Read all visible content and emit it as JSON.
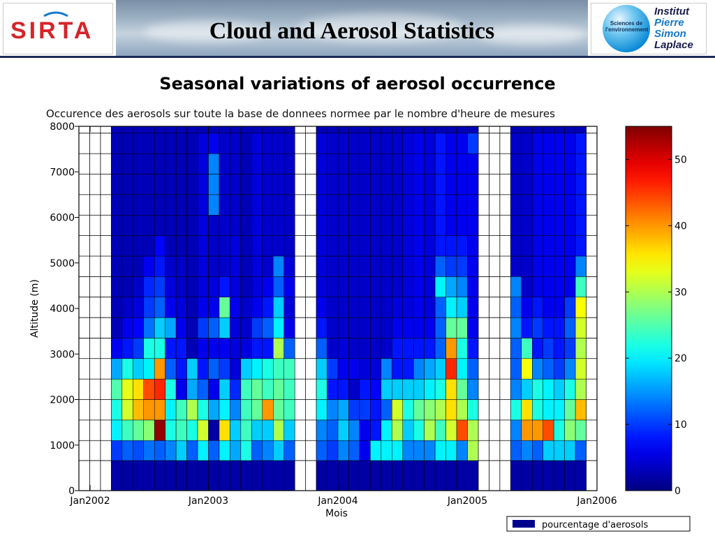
{
  "header": {
    "title": "Cloud and Aerosol Statistics",
    "logo_left_text": "SIRTA",
    "logo_right_globe_text": "Sciences de l'environnement",
    "logo_right_lines": [
      "Institut",
      "Pierre",
      "Simon",
      "Laplace"
    ]
  },
  "subtitle": "Seasonal variations of aerosol occurrence",
  "colors": {
    "header_line": "#1c2a5a",
    "logo_red": "#d6242a",
    "logo_blue": "#1578c8"
  },
  "chart_data": {
    "type": "heatmap",
    "title": "Occurence des aerosols sur toute la base de donnees normee par le nombre d'heure de mesures",
    "xlabel": "Mois",
    "ylabel": "Altitude (m)",
    "xticks": [
      "Jan2002",
      "Jan2003",
      "Jan2004",
      "Jan2005",
      "Jan2006"
    ],
    "yticks": [
      0,
      1000,
      2000,
      3000,
      4000,
      5000,
      6000,
      7000,
      8000
    ],
    "ylim": [
      0,
      8000
    ],
    "xlim_months": [
      0,
      48
    ],
    "colorbar": {
      "ticks": [
        0,
        10,
        20,
        30,
        40,
        50
      ],
      "range": [
        0,
        55
      ]
    },
    "legend": {
      "label": "pourcentage d'aerosols",
      "placement": "bottom-right"
    },
    "altitude_bins_m": [
      0,
      660,
      1100,
      1550,
      2000,
      2450,
      2900,
      3350,
      3800,
      4250,
      4700,
      5150,
      5600,
      6050,
      6500,
      6950,
      7400,
      7850,
      8000
    ],
    "columns": [
      {
        "month_index": 3,
        "values": [
          2,
          10,
          20,
          22,
          25,
          16,
          6,
          3,
          3,
          3,
          3,
          3,
          3,
          3,
          3,
          3,
          3,
          3
        ]
      },
      {
        "month_index": 4,
        "values": [
          2,
          12,
          24,
          32,
          33,
          22,
          8,
          6,
          4,
          3,
          3,
          3,
          3,
          3,
          3,
          3,
          3,
          3
        ]
      },
      {
        "month_index": 5,
        "values": [
          2,
          11,
          26,
          38,
          36,
          18,
          10,
          7,
          5,
          4,
          3,
          3,
          3,
          3,
          3,
          3,
          3,
          3
        ]
      },
      {
        "month_index": 6,
        "values": [
          2,
          13,
          28,
          40,
          44,
          20,
          22,
          13,
          10,
          9,
          6,
          3,
          3,
          3,
          3,
          3,
          3,
          3
        ]
      },
      {
        "month_index": 7,
        "values": [
          2,
          12,
          54,
          40,
          46,
          40,
          22,
          18,
          12,
          10,
          8,
          7,
          3,
          3,
          3,
          3,
          3,
          3
        ]
      },
      {
        "month_index": 8,
        "values": [
          2,
          14,
          22,
          20,
          22,
          12,
          8,
          16,
          6,
          5,
          4,
          3,
          3,
          3,
          3,
          3,
          3,
          3
        ]
      },
      {
        "month_index": 9,
        "values": [
          2,
          18,
          24,
          24,
          6,
          8,
          8,
          6,
          5,
          4,
          4,
          3,
          3,
          3,
          3,
          3,
          3,
          3
        ]
      },
      {
        "month_index": 10,
        "values": [
          2,
          12,
          22,
          30,
          16,
          18,
          3,
          3,
          3,
          3,
          3,
          3,
          3,
          3,
          3,
          3,
          3,
          3
        ]
      },
      {
        "month_index": 11,
        "values": [
          2,
          20,
          32,
          22,
          12,
          8,
          6,
          10,
          6,
          5,
          5,
          5,
          5,
          5,
          5,
          5,
          5,
          3
        ]
      },
      {
        "month_index": 12,
        "values": [
          2,
          12,
          2,
          16,
          6,
          12,
          6,
          12,
          6,
          5,
          4,
          4,
          4,
          14,
          14,
          14,
          6,
          3
        ]
      },
      {
        "month_index": 13,
        "values": [
          2,
          20,
          36,
          20,
          18,
          10,
          6,
          18,
          26,
          8,
          4,
          4,
          4,
          4,
          4,
          4,
          4,
          3
        ]
      },
      {
        "month_index": 14,
        "values": [
          2,
          16,
          18,
          14,
          9,
          5,
          5,
          5,
          6,
          5,
          5,
          5,
          4,
          4,
          4,
          4,
          4,
          3
        ]
      },
      {
        "month_index": 15,
        "values": [
          2,
          22,
          24,
          24,
          24,
          18,
          5,
          4,
          4,
          3,
          3,
          3,
          3,
          3,
          3,
          3,
          3,
          3
        ]
      },
      {
        "month_index": 16,
        "values": [
          2,
          12,
          18,
          26,
          26,
          20,
          8,
          10,
          6,
          5,
          5,
          5,
          5,
          5,
          5,
          5,
          5,
          3
        ]
      },
      {
        "month_index": 17,
        "values": [
          2,
          14,
          18,
          40,
          24,
          22,
          8,
          12,
          8,
          6,
          4,
          4,
          4,
          4,
          4,
          4,
          4,
          3
        ]
      },
      {
        "month_index": 18,
        "values": [
          2,
          18,
          30,
          26,
          26,
          24,
          30,
          20,
          18,
          12,
          14,
          4,
          4,
          4,
          4,
          4,
          4,
          3
        ]
      },
      {
        "month_index": 19,
        "values": [
          2,
          12,
          18,
          24,
          24,
          24,
          12,
          6,
          5,
          6,
          5,
          4,
          4,
          4,
          4,
          4,
          4,
          3
        ]
      },
      {
        "month_index": 22,
        "values": [
          2,
          12,
          14,
          20,
          22,
          18,
          12,
          8,
          6,
          5,
          5,
          5,
          5,
          5,
          5,
          5,
          5,
          3
        ]
      },
      {
        "month_index": 23,
        "values": [
          2,
          10,
          12,
          14,
          8,
          10,
          4,
          4,
          4,
          4,
          4,
          4,
          4,
          4,
          4,
          4,
          4,
          3
        ]
      },
      {
        "month_index": 24,
        "values": [
          2,
          14,
          18,
          16,
          8,
          6,
          5,
          4,
          4,
          4,
          4,
          4,
          4,
          4,
          4,
          4,
          4,
          3
        ]
      },
      {
        "month_index": 25,
        "values": [
          2,
          12,
          14,
          10,
          4,
          6,
          4,
          4,
          4,
          4,
          4,
          4,
          4,
          4,
          4,
          4,
          4,
          3
        ]
      },
      {
        "month_index": 26,
        "values": [
          2,
          6,
          6,
          10,
          8,
          5,
          4,
          4,
          4,
          4,
          4,
          4,
          4,
          4,
          4,
          4,
          4,
          3
        ]
      },
      {
        "month_index": 27,
        "values": [
          2,
          20,
          8,
          8,
          7,
          5,
          4,
          4,
          4,
          4,
          4,
          4,
          4,
          4,
          4,
          4,
          4,
          3
        ]
      },
      {
        "month_index": 28,
        "values": [
          2,
          20,
          20,
          12,
          18,
          14,
          4,
          4,
          4,
          4,
          4,
          4,
          4,
          4,
          4,
          4,
          4,
          3
        ]
      },
      {
        "month_index": 29,
        "values": [
          2,
          20,
          30,
          32,
          18,
          8,
          8,
          6,
          5,
          4,
          4,
          4,
          4,
          4,
          4,
          4,
          4,
          3
        ]
      },
      {
        "month_index": 30,
        "values": [
          2,
          14,
          18,
          22,
          18,
          8,
          8,
          6,
          5,
          5,
          5,
          5,
          5,
          5,
          5,
          5,
          5,
          3
        ]
      },
      {
        "month_index": 31,
        "values": [
          2,
          14,
          22,
          26,
          18,
          14,
          8,
          6,
          6,
          6,
          6,
          6,
          6,
          6,
          6,
          6,
          6,
          3
        ]
      },
      {
        "month_index": 32,
        "values": [
          2,
          14,
          30,
          28,
          20,
          16,
          8,
          6,
          5,
          5,
          5,
          5,
          5,
          5,
          5,
          5,
          5,
          3
        ]
      },
      {
        "month_index": 33,
        "values": [
          2,
          20,
          24,
          30,
          22,
          18,
          12,
          12,
          12,
          20,
          12,
          8,
          8,
          8,
          8,
          8,
          8,
          3
        ]
      },
      {
        "month_index": 34,
        "values": [
          2,
          20,
          32,
          36,
          36,
          46,
          40,
          26,
          20,
          16,
          10,
          8,
          6,
          6,
          6,
          6,
          6,
          3
        ]
      },
      {
        "month_index": 35,
        "values": [
          2,
          14,
          44,
          30,
          26,
          20,
          22,
          26,
          18,
          14,
          10,
          8,
          6,
          6,
          6,
          6,
          6,
          3
        ]
      },
      {
        "month_index": 36,
        "values": [
          2,
          30,
          30,
          22,
          14,
          12,
          8,
          6,
          6,
          6,
          6,
          6,
          6,
          6,
          6,
          6,
          10,
          3
        ]
      },
      {
        "month_index": 40,
        "values": [
          2,
          12,
          14,
          22,
          14,
          12,
          12,
          14,
          12,
          14,
          4,
          4,
          4,
          4,
          4,
          4,
          4,
          3
        ]
      },
      {
        "month_index": 41,
        "values": [
          2,
          14,
          40,
          36,
          18,
          34,
          24,
          8,
          6,
          4,
          4,
          4,
          4,
          4,
          4,
          4,
          4,
          3
        ]
      },
      {
        "month_index": 42,
        "values": [
          2,
          12,
          40,
          22,
          22,
          14,
          8,
          10,
          8,
          6,
          6,
          6,
          6,
          6,
          6,
          6,
          6,
          3
        ]
      },
      {
        "month_index": 43,
        "values": [
          2,
          18,
          44,
          20,
          20,
          12,
          10,
          8,
          6,
          6,
          6,
          6,
          6,
          6,
          6,
          6,
          6,
          3
        ]
      },
      {
        "month_index": 44,
        "values": [
          2,
          18,
          22,
          20,
          18,
          10,
          8,
          8,
          6,
          6,
          6,
          6,
          6,
          6,
          6,
          6,
          6,
          3
        ]
      },
      {
        "month_index": 45,
        "values": [
          2,
          18,
          28,
          26,
          22,
          14,
          10,
          12,
          10,
          6,
          6,
          6,
          6,
          6,
          6,
          6,
          6,
          3
        ]
      },
      {
        "month_index": 46,
        "values": [
          2,
          12,
          26,
          38,
          30,
          32,
          30,
          32,
          34,
          24,
          14,
          8,
          8,
          8,
          8,
          8,
          8,
          3
        ]
      }
    ]
  }
}
